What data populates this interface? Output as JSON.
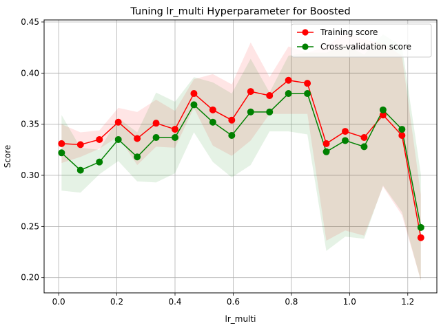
{
  "chart_data": {
    "type": "line",
    "title": "Tuning lr_multi Hyperparameter for Boosted",
    "xlabel": "lr_multi",
    "ylabel": "Score",
    "xlim": [
      -0.05,
      1.3
    ],
    "ylim": [
      0.185,
      0.452
    ],
    "grid": true,
    "legend_position": "top-right",
    "xticks": [
      0.0,
      0.2,
      0.4,
      0.6,
      0.8,
      1.0,
      1.2
    ],
    "xtick_labels": [
      "0.0",
      "0.2",
      "0.4",
      "0.6",
      "0.8",
      "1.0",
      "1.2"
    ],
    "yticks": [
      0.2,
      0.25,
      0.3,
      0.35,
      0.4,
      0.45
    ],
    "ytick_labels": [
      "0.20",
      "0.25",
      "0.30",
      "0.35",
      "0.40",
      "0.45"
    ],
    "x": [
      0.01,
      0.075,
      0.14,
      0.205,
      0.27,
      0.335,
      0.4,
      0.465,
      0.53,
      0.595,
      0.66,
      0.725,
      0.79,
      0.855,
      0.92,
      0.985,
      1.05,
      1.115,
      1.18,
      1.245
    ],
    "series": [
      {
        "name": "Training score",
        "color": "#ff0000",
        "values": [
          0.331,
          0.33,
          0.335,
          0.352,
          0.336,
          0.351,
          0.345,
          0.38,
          0.364,
          0.354,
          0.382,
          0.378,
          0.393,
          0.39,
          0.331,
          0.343,
          0.337,
          0.359,
          0.339,
          0.239
        ],
        "upper": [
          0.35,
          0.342,
          0.344,
          0.366,
          0.362,
          0.374,
          0.363,
          0.394,
          0.399,
          0.389,
          0.43,
          0.396,
          0.426,
          0.42,
          0.426,
          0.44,
          0.433,
          0.429,
          0.417,
          0.281
        ],
        "lower": [
          0.312,
          0.318,
          0.326,
          0.338,
          0.31,
          0.328,
          0.327,
          0.366,
          0.329,
          0.319,
          0.334,
          0.36,
          0.36,
          0.36,
          0.236,
          0.246,
          0.241,
          0.289,
          0.261,
          0.197
        ]
      },
      {
        "name": "Cross-validation score",
        "color": "#008000",
        "values": [
          0.322,
          0.305,
          0.313,
          0.335,
          0.318,
          0.337,
          0.337,
          0.369,
          0.352,
          0.339,
          0.362,
          0.362,
          0.38,
          0.38,
          0.323,
          0.334,
          0.328,
          0.364,
          0.345,
          0.249
        ],
        "upper": [
          0.359,
          0.327,
          0.325,
          0.356,
          0.342,
          0.381,
          0.372,
          0.396,
          0.391,
          0.38,
          0.414,
          0.381,
          0.417,
          0.42,
          0.42,
          0.428,
          0.418,
          0.438,
          0.426,
          0.301
        ],
        "lower": [
          0.285,
          0.283,
          0.301,
          0.314,
          0.294,
          0.293,
          0.302,
          0.342,
          0.313,
          0.298,
          0.31,
          0.343,
          0.343,
          0.34,
          0.226,
          0.24,
          0.238,
          0.29,
          0.264,
          0.197
        ]
      }
    ]
  }
}
